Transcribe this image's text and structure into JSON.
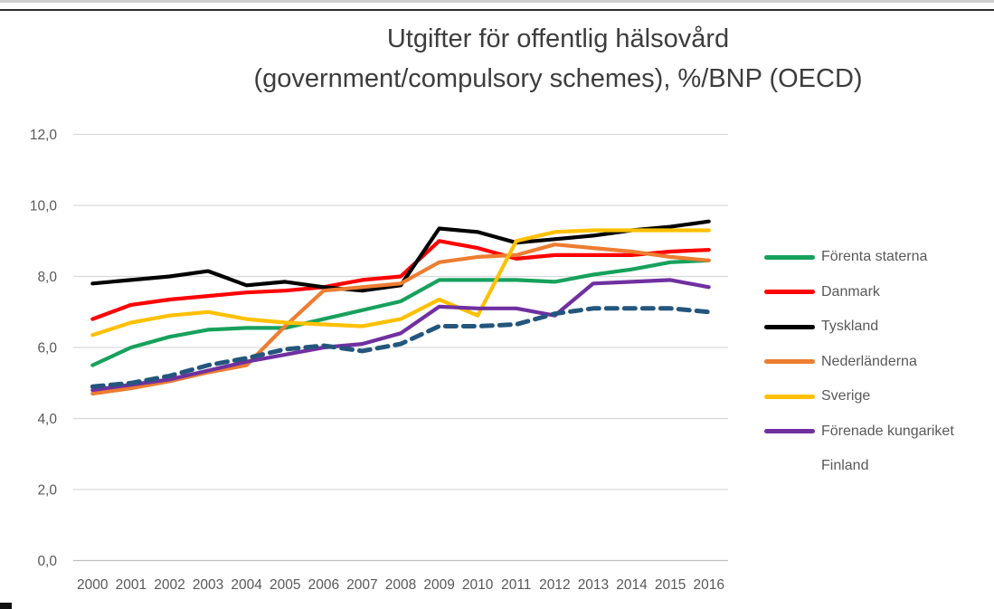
{
  "title": {
    "line1": "Utgifter för offentlig hälsovård",
    "line2": "(government/compulsory schemes), %/BNP (OECD)"
  },
  "colors": {
    "background": "#FFFFFF",
    "gridline": "#D9D9D9",
    "baseline": "#BFBFBF",
    "tick_label": "#595959",
    "title_text": "#3D3D3D",
    "legend_label": "#595959"
  },
  "chart_data": {
    "type": "line",
    "title": "Utgifter för offentlig hälsovård (government/compulsory schemes), %/BNP (OECD)",
    "xlabel": "",
    "ylabel": "",
    "grid": true,
    "legend_position": "right",
    "x": [
      2000,
      2001,
      2002,
      2003,
      2004,
      2005,
      2006,
      2007,
      2008,
      2009,
      2010,
      2011,
      2012,
      2013,
      2014,
      2015,
      2016
    ],
    "x_tick_labels": [
      "2000",
      "2001",
      "2002",
      "2003",
      "2004",
      "2005",
      "2006",
      "2007",
      "2008",
      "2009",
      "2010",
      "2011",
      "2012",
      "2013",
      "2014",
      "2015",
      "2016"
    ],
    "y_axis": {
      "min": 0,
      "max": 12,
      "step": 2,
      "tick_labels": [
        "0,0",
        "2,0",
        "4,0",
        "6,0",
        "8,0",
        "10,0",
        "12,0"
      ],
      "decimal_separator": ","
    },
    "series": [
      {
        "name": "Förenta staterna",
        "color": "#17A15C",
        "style": "solid",
        "values": [
          5.5,
          6.0,
          6.3,
          6.5,
          6.55,
          6.55,
          6.8,
          7.05,
          7.3,
          7.9,
          7.9,
          7.9,
          7.85,
          8.05,
          8.2,
          8.4,
          8.45
        ]
      },
      {
        "name": "Danmark",
        "color": "#FF0000",
        "style": "solid",
        "values": [
          6.8,
          7.2,
          7.35,
          7.45,
          7.55,
          7.6,
          7.7,
          7.9,
          8.0,
          9.0,
          8.8,
          8.5,
          8.6,
          8.6,
          8.6,
          8.7,
          8.75
        ]
      },
      {
        "name": "Tyskland",
        "color": "#000000",
        "style": "solid",
        "values": [
          7.8,
          7.9,
          8.0,
          8.15,
          7.75,
          7.85,
          7.7,
          7.6,
          7.75,
          9.35,
          9.25,
          8.95,
          9.05,
          9.15,
          9.3,
          9.4,
          9.55
        ]
      },
      {
        "name": "Nederländerna",
        "color": "#ED7D31",
        "style": "solid",
        "values": [
          4.7,
          4.85,
          5.05,
          5.3,
          5.5,
          6.6,
          7.6,
          7.7,
          7.8,
          8.4,
          8.55,
          8.6,
          8.9,
          8.8,
          8.7,
          8.55,
          8.45
        ]
      },
      {
        "name": "Sverige",
        "color": "#FFC000",
        "style": "solid",
        "values": [
          6.35,
          6.7,
          6.9,
          7.0,
          6.8,
          6.7,
          6.65,
          6.6,
          6.8,
          7.35,
          6.9,
          9.0,
          9.25,
          9.3,
          9.3,
          9.3,
          9.3
        ]
      },
      {
        "name": "Förenade kungariket",
        "color": "#7030A0",
        "style": "solid",
        "values": [
          4.8,
          4.95,
          5.1,
          5.35,
          5.6,
          5.8,
          6.0,
          6.1,
          6.4,
          7.15,
          7.1,
          7.1,
          6.9,
          7.8,
          7.85,
          7.9,
          7.7
        ]
      },
      {
        "name": "Finland",
        "color": "#24567D",
        "style": "dashed",
        "values": [
          4.9,
          5.0,
          5.2,
          5.5,
          5.7,
          5.95,
          6.05,
          5.9,
          6.1,
          6.6,
          6.6,
          6.65,
          6.95,
          7.1,
          7.1,
          7.1,
          7.0
        ]
      }
    ]
  }
}
